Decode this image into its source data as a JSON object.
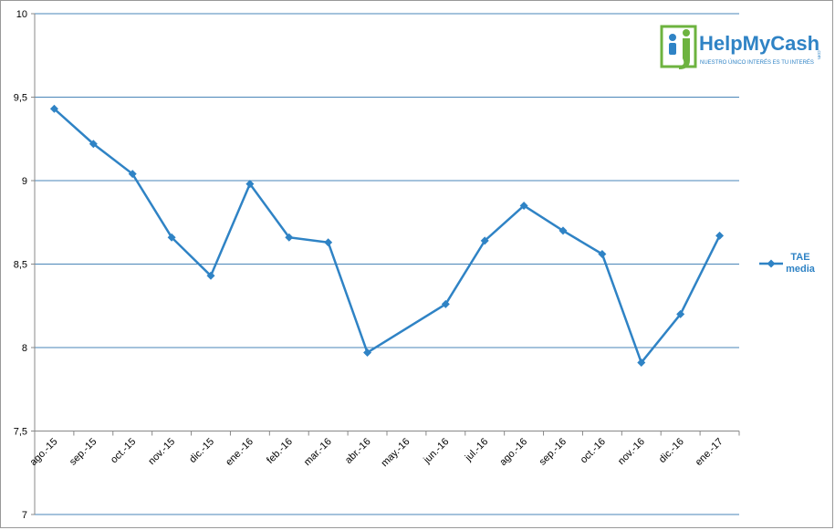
{
  "chart_data": {
    "type": "line",
    "categories": [
      "ago.-15",
      "sep.-15",
      "oct.-15",
      "nov.-15",
      "dic.-15",
      "ene.-16",
      "feb.-16",
      "mar.-16",
      "abr.-16",
      "may.-16",
      "jun.-16",
      "jul.-16",
      "ago.-16",
      "sep.-16",
      "oct.-16",
      "nov.-16",
      "dic.-16",
      "ene.-17"
    ],
    "series": [
      {
        "name": "TAE media",
        "color": "#2f83c5",
        "values": [
          9.43,
          9.22,
          9.04,
          8.66,
          8.43,
          8.98,
          8.66,
          8.63,
          7.97,
          null,
          8.26,
          8.64,
          8.85,
          8.7,
          8.56,
          7.91,
          8.2,
          8.67
        ]
      }
    ],
    "span_gaps": true,
    "ylim": [
      7,
      10
    ],
    "yticks": [
      7,
      {
        "value": 7.5,
        "label": "7,5"
      },
      8,
      {
        "value": 8.5,
        "label": "8,5"
      },
      9,
      {
        "value": 9.5,
        "label": "9,5"
      },
      10
    ],
    "x_axis_at": 7.5,
    "grid": true,
    "grid_color": "#4a86b8",
    "legend": "right"
  },
  "logo": {
    "name": "HelpMyCash",
    "domain": ".com",
    "tagline": "NUESTRO ÚNICO INTERÉS ES TU INTERÉS"
  }
}
